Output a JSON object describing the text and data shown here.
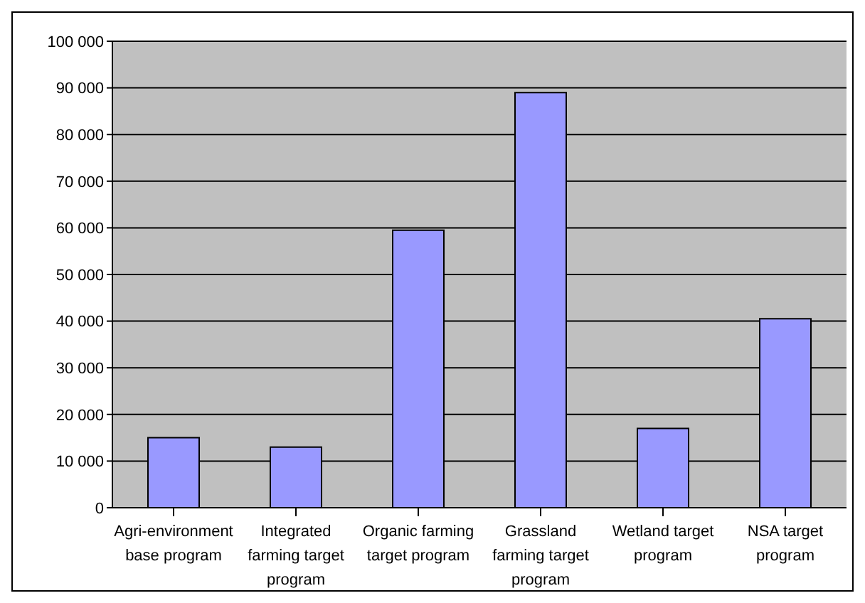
{
  "chart_data": {
    "type": "bar",
    "categories": [
      "Agri-environment base program",
      "Integrated farming target program",
      "Organic farming target program",
      "Grassland farming target program",
      "Wetland target program",
      "NSA target program"
    ],
    "values": [
      15000,
      13000,
      59500,
      89000,
      17000,
      40500
    ],
    "color": "#9999ff",
    "ylim": [
      0,
      100000
    ],
    "yticks": [
      0,
      {
        "value": 10000,
        "label": "10 000"
      },
      {
        "value": 20000,
        "label": "20 000"
      },
      {
        "value": 30000,
        "label": "30 000"
      },
      {
        "value": 40000,
        "label": "40 000"
      },
      {
        "value": 50000,
        "label": "50 000"
      },
      {
        "value": 60000,
        "label": "60 000"
      },
      {
        "value": 70000,
        "label": "70 000"
      },
      {
        "value": 80000,
        "label": "80 000"
      },
      {
        "value": 90000,
        "label": "90 000"
      },
      {
        "value": 100000,
        "label": "100 000"
      }
    ],
    "grid": "y"
  }
}
